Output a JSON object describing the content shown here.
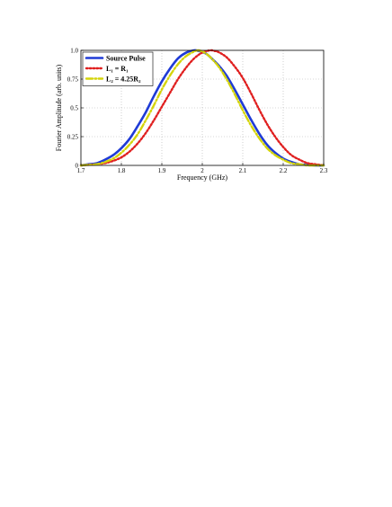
{
  "chart_data": {
    "type": "line",
    "xlabel": "Frequency (GHz)",
    "ylabel": "Fourier Amplitude (arb. units)",
    "xlim": [
      1.7,
      2.3
    ],
    "ylim": [
      0,
      1.0
    ],
    "x_ticks": [
      1.7,
      1.8,
      1.9,
      2.0,
      2.1,
      2.2,
      2.3
    ],
    "x_tick_labels": [
      "1.7",
      "1.8",
      "1.9",
      "2",
      "2.1",
      "2.2",
      "2.3"
    ],
    "y_ticks": [
      0,
      0.25,
      0.5,
      0.75,
      1.0
    ],
    "y_tick_labels": [
      "0",
      "0.25",
      "0.5",
      "0.75",
      "1.0"
    ],
    "grid": true,
    "legend_position": "top-left",
    "series": [
      {
        "name": "Source Pulse",
        "color": "#1f3bd6",
        "style": "solid",
        "x": [
          1.7,
          1.72,
          1.74,
          1.76,
          1.78,
          1.8,
          1.82,
          1.84,
          1.86,
          1.88,
          1.9,
          1.92,
          1.94,
          1.96,
          1.98,
          1.99,
          2.0,
          2.01,
          2.02,
          2.04,
          2.06,
          2.08,
          2.1,
          2.12,
          2.14,
          2.16,
          2.18,
          2.2,
          2.22,
          2.24,
          2.26,
          2.28,
          2.3
        ],
        "y": [
          0.0,
          0.01,
          0.02,
          0.05,
          0.09,
          0.15,
          0.23,
          0.34,
          0.46,
          0.6,
          0.73,
          0.84,
          0.93,
          0.98,
          1.0,
          0.995,
          0.985,
          0.97,
          0.94,
          0.87,
          0.78,
          0.66,
          0.53,
          0.4,
          0.28,
          0.18,
          0.11,
          0.06,
          0.03,
          0.01,
          0.005,
          0.0,
          0.0
        ]
      },
      {
        "name": "L₁ = R₁",
        "color": "#e02020",
        "style": "dotted",
        "x": [
          1.7,
          1.72,
          1.74,
          1.76,
          1.78,
          1.8,
          1.82,
          1.84,
          1.86,
          1.88,
          1.9,
          1.92,
          1.94,
          1.96,
          1.98,
          2.0,
          2.02,
          2.03,
          2.04,
          2.06,
          2.08,
          2.1,
          2.12,
          2.14,
          2.16,
          2.18,
          2.2,
          2.22,
          2.24,
          2.26,
          2.28,
          2.3
        ],
        "y": [
          0.0,
          0.005,
          0.01,
          0.02,
          0.04,
          0.07,
          0.12,
          0.19,
          0.28,
          0.39,
          0.51,
          0.63,
          0.75,
          0.85,
          0.93,
          0.98,
          1.0,
          0.995,
          0.985,
          0.94,
          0.86,
          0.76,
          0.63,
          0.49,
          0.36,
          0.25,
          0.16,
          0.09,
          0.05,
          0.02,
          0.01,
          0.0
        ]
      },
      {
        "name": "L₂ = 4.25R₂",
        "color": "#d4d40a",
        "style": "dash-dot",
        "x": [
          1.7,
          1.72,
          1.74,
          1.76,
          1.78,
          1.8,
          1.82,
          1.84,
          1.86,
          1.88,
          1.9,
          1.92,
          1.94,
          1.96,
          1.98,
          1.99,
          2.0,
          2.01,
          2.02,
          2.04,
          2.06,
          2.08,
          2.1,
          2.12,
          2.14,
          2.16,
          2.18,
          2.2,
          2.22,
          2.24,
          2.26,
          2.28,
          2.3
        ],
        "y": [
          0.0,
          0.005,
          0.01,
          0.03,
          0.06,
          0.11,
          0.18,
          0.27,
          0.39,
          0.52,
          0.66,
          0.78,
          0.88,
          0.95,
          0.99,
          1.0,
          0.99,
          0.97,
          0.94,
          0.86,
          0.75,
          0.62,
          0.48,
          0.35,
          0.24,
          0.15,
          0.09,
          0.05,
          0.02,
          0.01,
          0.0,
          0.0,
          0.0
        ]
      }
    ]
  }
}
